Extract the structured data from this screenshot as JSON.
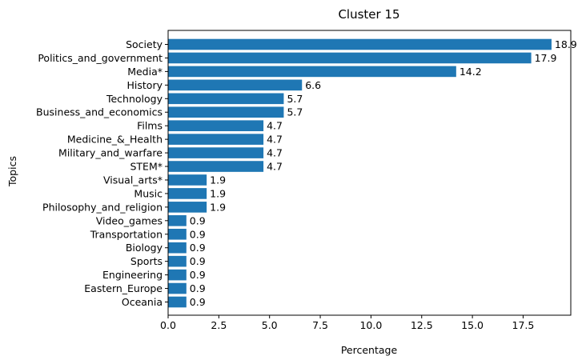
{
  "chart_data": {
    "type": "bar",
    "orientation": "horizontal",
    "title": "Cluster 15",
    "xlabel": "Percentage",
    "ylabel": "Topics",
    "xlim": [
      0,
      19.85
    ],
    "xticks": [
      0.0,
      2.5,
      5.0,
      7.5,
      10.0,
      12.5,
      15.0,
      17.5
    ],
    "xtick_labels": [
      "0.0",
      "2.5",
      "5.0",
      "7.5",
      "10.0",
      "12.5",
      "15.0",
      "17.5"
    ],
    "bar_color": "#1f77b4",
    "grid": false,
    "categories": [
      "Society",
      "Politics_and_government",
      "Media*",
      "History",
      "Technology",
      "Business_and_economics",
      "Films",
      "Medicine_&_Health",
      "Military_and_warfare",
      "STEM*",
      "Visual_arts*",
      "Music",
      "Philosophy_and_religion",
      "Video_games",
      "Transportation",
      "Biology",
      "Sports",
      "Engineering",
      "Eastern_Europe",
      "Oceania"
    ],
    "values": [
      18.9,
      17.9,
      14.2,
      6.6,
      5.7,
      5.7,
      4.7,
      4.7,
      4.7,
      4.7,
      1.9,
      1.9,
      1.9,
      0.9,
      0.9,
      0.9,
      0.9,
      0.9,
      0.9,
      0.9
    ],
    "value_labels": [
      "18.9",
      "17.9",
      "14.2",
      "6.6",
      "5.7",
      "5.7",
      "4.7",
      "4.7",
      "4.7",
      "4.7",
      "1.9",
      "1.9",
      "1.9",
      "0.9",
      "0.9",
      "0.9",
      "0.9",
      "0.9",
      "0.9",
      "0.9"
    ]
  }
}
